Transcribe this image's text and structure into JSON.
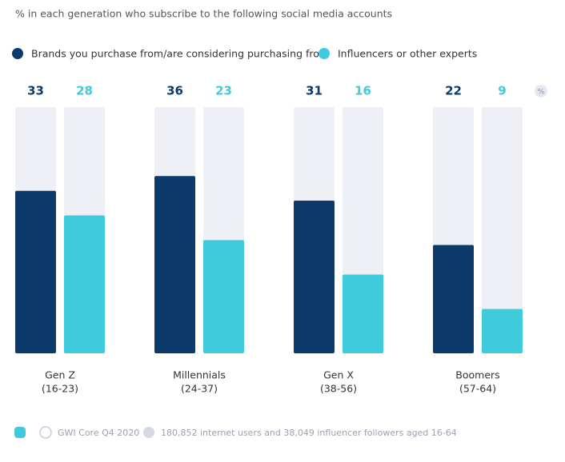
{
  "chart_data": {
    "type": "bar",
    "subtitle": "% in each generation who subscribe to the following social media accounts",
    "categories": [
      "Gen Z",
      "Millennials",
      "Gen X",
      "Boomers"
    ],
    "category_sublabels": [
      "(16-23)",
      "(24-37)",
      "(38-56)",
      "(57-64)"
    ],
    "series": [
      {
        "name": "Brands you purchase from/are considering purchasing from",
        "color": "#0b3a6b",
        "values": [
          33,
          36,
          31,
          22
        ]
      },
      {
        "name": "Influencers or other experts",
        "color": "#3ecbdb",
        "values": [
          28,
          23,
          16,
          9
        ]
      }
    ],
    "ylim": [
      0,
      50
    ],
    "track_color": "#eef0f5",
    "unit_label": "%",
    "source": "GWI Core Q4 2020",
    "note": "180,852 internet users and 38,049 influencer followers aged 16-64"
  }
}
